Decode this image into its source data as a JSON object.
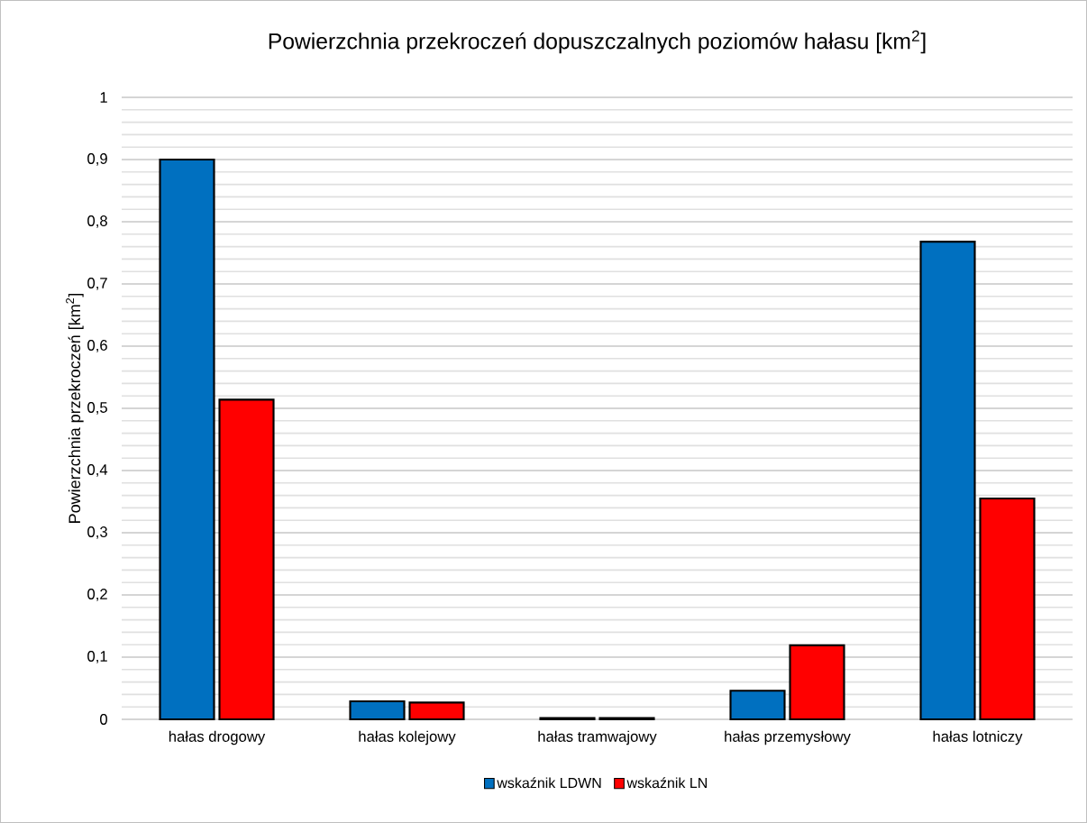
{
  "chart_data": {
    "type": "bar",
    "title": "Powierzchnia przekroczeń dopuszczalnych poziomów hałasu [km$^{2}$]",
    "ylabel": "Powierzchnia przekroczeń [km$^{2}$]",
    "categories": [
      "hałas drogowy",
      "hałas kolejowy",
      "hałas tramwajowy",
      "hałas przemysłowy",
      "hałas lotniczy"
    ],
    "series": [
      {
        "name": "wskaźnik LDWN",
        "color": "#0070c0",
        "values": [
          0.9,
          0.029,
          0.002,
          0.046,
          0.768
        ]
      },
      {
        "name": "wskaźnik LN",
        "color": "#ff0000",
        "values": [
          0.514,
          0.027,
          0.002,
          0.119,
          0.355
        ]
      }
    ],
    "ylim": [
      0,
      1
    ],
    "yticks": [
      0,
      {
        "value": 0.1,
        "label": "0,1"
      },
      {
        "value": 0.2,
        "label": "0,2"
      },
      {
        "value": 0.3,
        "label": "0,3"
      },
      {
        "value": 0.4,
        "label": "0,4"
      },
      {
        "value": 0.5,
        "label": "0,5"
      },
      {
        "value": 0.6,
        "label": "0,6"
      },
      {
        "value": 0.7,
        "label": "0,7"
      },
      {
        "value": 0.8,
        "label": "0,8"
      },
      {
        "value": 0.9,
        "label": "0,9"
      },
      1
    ],
    "grid": "y",
    "legend": "bottom"
  }
}
